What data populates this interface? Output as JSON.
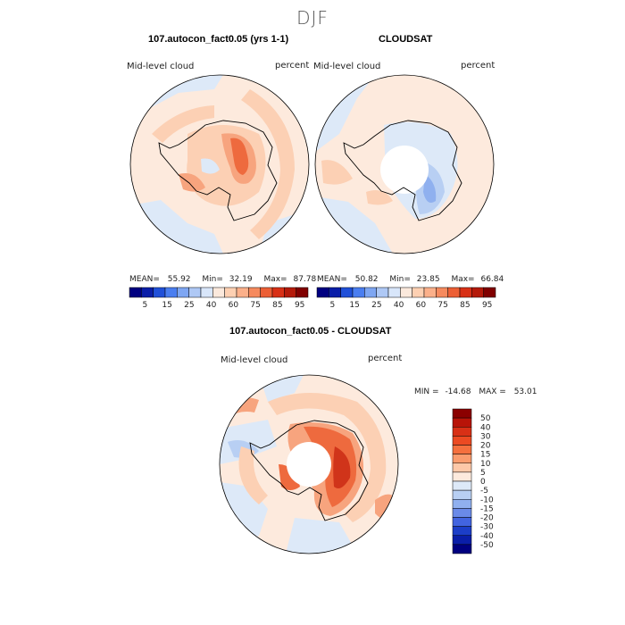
{
  "figure": {
    "season": "DJF"
  },
  "panels": [
    {
      "title": "107.autocon_fact0.05 (yrs 1-1)",
      "field_label": "Mid-level cloud",
      "units": "percent",
      "stats": {
        "mean_label": "MEAN=",
        "mean": "55.92",
        "min_label": "Min=",
        "min": "32.19",
        "max_label": "Max=",
        "max": "87.78"
      }
    },
    {
      "title": "CLOUDSAT",
      "field_label": "Mid-level cloud",
      "units": "percent",
      "stats": {
        "mean_label": "MEAN=",
        "mean": "50.82",
        "min_label": "Min=",
        "min": "23.85",
        "max_label": "Max=",
        "max": "66.84"
      }
    }
  ],
  "colorbar_abs": {
    "colors": [
      "#000080",
      "#0a1ea8",
      "#2050d8",
      "#4a7ef0",
      "#7ea6f2",
      "#aec8f5",
      "#d8e6fa",
      "#fbe9dc",
      "#fdd0b2",
      "#fbb08a",
      "#f68a5e",
      "#ec5f35",
      "#d83016",
      "#b41a0a",
      "#800000"
    ],
    "tick_labels": [
      "5",
      "15",
      "25",
      "40",
      "60",
      "75",
      "85",
      "95"
    ]
  },
  "diff_panel": {
    "title": "107.autocon_fact0.05 - CLOUDSAT",
    "field_label": "Mid-level cloud",
    "units": "percent",
    "min_label": "MIN =",
    "min": "-14.68",
    "max_label": "MAX =",
    "max": "53.01"
  },
  "colorbar_diff": {
    "colors": [
      "#8b0000",
      "#b81408",
      "#d83016",
      "#ec4a22",
      "#f5703e",
      "#fa9c6e",
      "#fdc8a8",
      "#fdeadd",
      "#dde9f8",
      "#b8cff3",
      "#90b0ef",
      "#6a8ae8",
      "#4264e0",
      "#1c3ec8",
      "#0a1ea8",
      "#000080"
    ],
    "tick_labels": [
      "50",
      "40",
      "30",
      "20",
      "15",
      "10",
      "5",
      "0",
      "-5",
      "-10",
      "-15",
      "-20",
      "-30",
      "-40",
      "-50"
    ]
  },
  "map_colors": {
    "neutral_pos": "#fdeadd",
    "neutral_neg": "#dde9f8",
    "light_red": "#fcd0b4",
    "mid_red": "#f7a47e",
    "red": "#ee6a3e",
    "dark_red": "#d0341a",
    "light_blue": "#b8cff3",
    "mid_blue": "#8fb0ef",
    "blue": "#5a82e6"
  }
}
